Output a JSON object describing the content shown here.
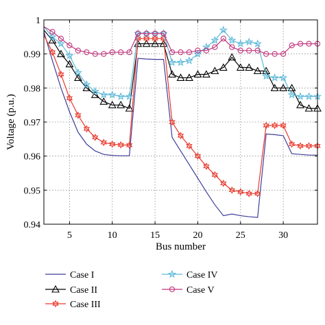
{
  "chart_data": {
    "type": "line",
    "xlabel": "Bus number",
    "ylabel": "Voltage (p.u.)",
    "xlim": [
      2,
      34
    ],
    "ylim": [
      0.94,
      1.0
    ],
    "xticks": [
      5,
      10,
      15,
      20,
      25,
      30
    ],
    "yticks": [
      0.94,
      0.95,
      0.96,
      0.97,
      0.98,
      0.99,
      1
    ],
    "ytick_labels": [
      "0.94",
      "0.95",
      "0.96",
      "0.97",
      "0.98",
      "0.99",
      "1"
    ],
    "grid": true,
    "legend_placement": "below",
    "x": [
      2,
      3,
      4,
      5,
      6,
      7,
      8,
      9,
      10,
      11,
      12,
      13,
      14,
      15,
      16,
      17,
      18,
      19,
      20,
      21,
      22,
      23,
      24,
      25,
      26,
      27,
      28,
      29,
      30,
      31,
      32,
      33,
      34
    ],
    "series": [
      {
        "name": "Case I",
        "color": "#3d3d99",
        "marker": "none",
        "values": [
          0.9965,
          0.988,
          0.98,
          0.973,
          0.967,
          0.9635,
          0.9615,
          0.9605,
          0.9602,
          0.9601,
          0.9601,
          0.9887,
          0.9885,
          0.9884,
          0.9884,
          0.9655,
          0.9615,
          0.9575,
          0.9535,
          0.9495,
          0.9457,
          0.9425,
          0.943,
          0.9425,
          0.9422,
          0.942,
          0.9665,
          0.9663,
          0.966,
          0.9607,
          0.9605,
          0.9603,
          0.9603
        ]
      },
      {
        "name": "Case II",
        "color": "#000000",
        "marker": "triangle",
        "values": [
          0.997,
          0.994,
          0.99,
          0.987,
          0.983,
          0.98,
          0.978,
          0.976,
          0.975,
          0.975,
          0.974,
          0.993,
          0.993,
          0.993,
          0.993,
          0.984,
          0.983,
          0.983,
          0.984,
          0.984,
          0.985,
          0.986,
          0.989,
          0.986,
          0.986,
          0.985,
          0.985,
          0.98,
          0.98,
          0.98,
          0.975,
          0.974,
          0.974
        ]
      },
      {
        "name": "Case III",
        "color": "#e8372a",
        "marker": "star",
        "values": [
          0.9955,
          0.9905,
          0.984,
          0.977,
          0.972,
          0.968,
          0.9655,
          0.964,
          0.9635,
          0.9633,
          0.9632,
          0.9945,
          0.9945,
          0.9945,
          0.9945,
          0.97,
          0.966,
          0.963,
          0.96,
          0.957,
          0.9545,
          0.952,
          0.95,
          0.9495,
          0.949,
          0.949,
          0.969,
          0.969,
          0.969,
          0.9635,
          0.963,
          0.963,
          0.963
        ]
      },
      {
        "name": "Case IV",
        "color": "#5bb8d8",
        "marker": "pentagram",
        "values": [
          0.998,
          0.995,
          0.993,
          0.9895,
          0.9845,
          0.981,
          0.979,
          0.978,
          0.978,
          0.9775,
          0.9775,
          0.996,
          0.996,
          0.996,
          0.996,
          0.9875,
          0.9875,
          0.988,
          0.99,
          0.992,
          0.994,
          0.997,
          0.994,
          0.993,
          0.9935,
          0.993,
          0.9835,
          0.983,
          0.983,
          0.978,
          0.9775,
          0.9775,
          0.9775
        ]
      },
      {
        "name": "Case V",
        "color": "#c0357d",
        "marker": "circle",
        "values": [
          0.998,
          0.9965,
          0.9945,
          0.9925,
          0.991,
          0.9905,
          0.99,
          0.99,
          0.9905,
          0.9905,
          0.9905,
          0.996,
          0.996,
          0.996,
          0.996,
          0.9905,
          0.9905,
          0.9905,
          0.991,
          0.991,
          0.992,
          0.9945,
          0.992,
          0.991,
          0.991,
          0.991,
          0.99,
          0.99,
          0.99,
          0.9925,
          0.993,
          0.993,
          0.993
        ]
      }
    ]
  }
}
